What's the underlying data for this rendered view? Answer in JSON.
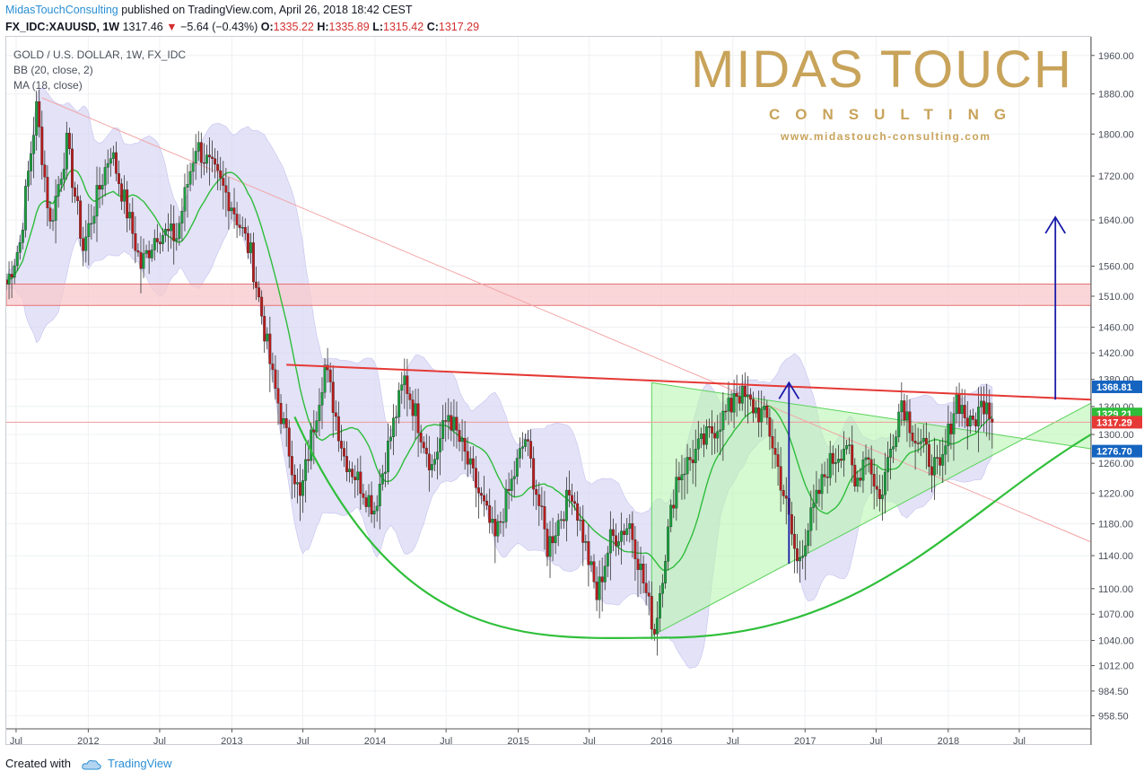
{
  "header": {
    "publisher": "MidasTouchConsulting",
    "published_text": "published on TradingView.com, April 26, 2018 18:42 CEST",
    "symbol": "FX_IDC:XAUUSD, 1W",
    "last": "1317.46",
    "change": "−5.64 (−0.43%)",
    "o_label": "O:",
    "o_val": "1335.22",
    "h_label": "H:",
    "h_val": "1335.89",
    "l_label": "L:",
    "l_val": "1315.42",
    "c_label": "C:",
    "c_val": "1317.29"
  },
  "legend": {
    "symbol": "GOLD / U.S. DOLLAR, 1W, FX_IDC",
    "bb": "BB (20, close, 2)",
    "ma": "MA (18, close)"
  },
  "watermark": {
    "title": "MIDAS TOUCH",
    "subtitle": "CONSULTING",
    "url": "www.midastouch-consulting.com"
  },
  "footer": {
    "created_with": "Created with",
    "brand": "TradingView"
  },
  "colors": {
    "up_candle": "#1b9e3e",
    "down_candle": "#b71c1c",
    "bb_fill": "#d7d5f3",
    "ma_line": "#2ebd3a",
    "resistance_zone": "#f8c8cc",
    "resistance_line": "#e53935",
    "triangle_fill": "#b9f5b0",
    "cup_curve": "#2fbf3a",
    "arrow": "#1a1aaa"
  },
  "chart_data": {
    "type": "candlestick",
    "title": "GOLD / U.S. DOLLAR, 1W, FX_IDC",
    "y_axis": {
      "scale": "log",
      "range": [
        945,
        2000
      ],
      "ticks": [
        1960,
        1880,
        1800,
        1720,
        1640,
        1560,
        1510,
        1460,
        1420,
        1380,
        1340,
        1300,
        1260,
        1220,
        1180,
        1140,
        1100,
        1070,
        1040,
        1012,
        984.5,
        958.5
      ],
      "tick_labels": [
        "1960.00",
        "1880.00",
        "1800.00",
        "1720.00",
        "1640.00",
        "1560.00",
        "1510.00",
        "1460.00",
        "1420.00",
        "1380.00",
        "1340.00",
        "1300.00",
        "1260.00",
        "1220.00",
        "1180.00",
        "1140.00",
        "1100.00",
        "1070.00",
        "1040.00",
        "1012.00",
        "984.50",
        "958.50"
      ],
      "position": "right"
    },
    "x_axis": {
      "range": [
        "2011-06-06",
        "2018-12-31"
      ],
      "ticks": [
        "2011-07-01",
        "2012-01-01",
        "2012-07-01",
        "2013-01-01",
        "2013-07-01",
        "2014-01-01",
        "2014-07-01",
        "2015-01-01",
        "2015-07-01",
        "2016-01-01",
        "2016-07-01",
        "2017-01-01",
        "2017-07-01",
        "2018-01-01",
        "2018-07-01"
      ],
      "tick_labels": [
        "Jul",
        "2012",
        "Jul",
        "2013",
        "Jul",
        "2014",
        "Jul",
        "2015",
        "Jul",
        "2016",
        "Jul",
        "2017",
        "Jul",
        "2018",
        "Jul"
      ]
    },
    "price_path": [
      [
        "2011-06-06",
        1530
      ],
      [
        "2011-07-11",
        1600
      ],
      [
        "2011-08-22",
        1850
      ],
      [
        "2011-09-26",
        1630
      ],
      [
        "2011-11-07",
        1780
      ],
      [
        "2011-12-19",
        1590
      ],
      [
        "2012-02-27",
        1770
      ],
      [
        "2012-05-14",
        1560
      ],
      [
        "2012-06-25",
        1620
      ],
      [
        "2012-08-13",
        1610
      ],
      [
        "2012-10-01",
        1780
      ],
      [
        "2012-11-12",
        1730
      ],
      [
        "2012-12-31",
        1670
      ],
      [
        "2013-02-18",
        1580
      ],
      [
        "2013-04-15",
        1380
      ],
      [
        "2013-06-24",
        1210
      ],
      [
        "2013-08-26",
        1400
      ],
      [
        "2013-10-14",
        1270
      ],
      [
        "2013-12-30",
        1200
      ],
      [
        "2014-03-17",
        1380
      ],
      [
        "2014-05-26",
        1255
      ],
      [
        "2014-07-07",
        1330
      ],
      [
        "2014-09-29",
        1210
      ],
      [
        "2014-11-03",
        1160
      ],
      [
        "2015-01-19",
        1295
      ],
      [
        "2015-03-16",
        1150
      ],
      [
        "2015-05-18",
        1225
      ],
      [
        "2015-07-20",
        1090
      ],
      [
        "2015-08-24",
        1160
      ],
      [
        "2015-10-12",
        1180
      ],
      [
        "2015-12-14",
        1050
      ],
      [
        "2016-02-08",
        1240
      ],
      [
        "2016-05-02",
        1300
      ],
      [
        "2016-06-27",
        1340
      ],
      [
        "2016-07-04",
        1365
      ],
      [
        "2016-09-26",
        1320
      ],
      [
        "2016-11-07",
        1220
      ],
      [
        "2016-12-12",
        1130
      ],
      [
        "2017-02-27",
        1255
      ],
      [
        "2017-04-17",
        1290
      ],
      [
        "2017-05-08",
        1225
      ],
      [
        "2017-06-05",
        1280
      ],
      [
        "2017-07-10",
        1210
      ],
      [
        "2017-09-04",
        1350
      ],
      [
        "2017-10-09",
        1295
      ],
      [
        "2017-12-11",
        1245
      ],
      [
        "2018-01-22",
        1355
      ],
      [
        "2018-02-26",
        1310
      ],
      [
        "2018-04-09",
        1355
      ],
      [
        "2018-04-23",
        1317
      ]
    ],
    "last_close": 1317.29,
    "price_labels": [
      {
        "value": 1368.81,
        "text": "1368.81",
        "color": "#1565c0"
      },
      {
        "value": 1329.21,
        "text": "1329.21",
        "color": "#2ebd3a"
      },
      {
        "value": 1317.29,
        "text": "1317.29",
        "color": "#e53935"
      },
      {
        "value": 1276.7,
        "text": "1276.70",
        "color": "#1565c0"
      }
    ],
    "resistance_zone": [
      1495,
      1530
    ],
    "horizontal_line": 1317.29,
    "resistance_trendline": [
      [
        "2013-05-20",
        1402
      ],
      [
        "2018-12-31",
        1350
      ]
    ],
    "falling_trendline": [
      [
        "2011-09-05",
        1872
      ],
      [
        "2018-12-31",
        1157
      ]
    ],
    "triangle": [
      [
        "2015-12-07",
        1375
      ],
      [
        "2015-12-07",
        1045
      ],
      [
        "2018-12-31",
        1345
      ],
      [
        "2018-12-31",
        1280
      ]
    ],
    "cup_curve": {
      "from": [
        "2013-06-10",
        1325
      ],
      "bottom": [
        "2016-01-04",
        1043
      ],
      "to": [
        "2018-12-31",
        1300
      ]
    },
    "arrows": [
      {
        "from": [
          "2016-11-21",
          1130
        ],
        "to": [
          "2016-11-21",
          1375
        ]
      },
      {
        "from": [
          "2018-10-01",
          1350
        ],
        "to": [
          "2018-10-01",
          1645
        ]
      }
    ],
    "legend": [
      "BB (20, close, 2)",
      "MA (18, close)"
    ],
    "grid": true
  }
}
